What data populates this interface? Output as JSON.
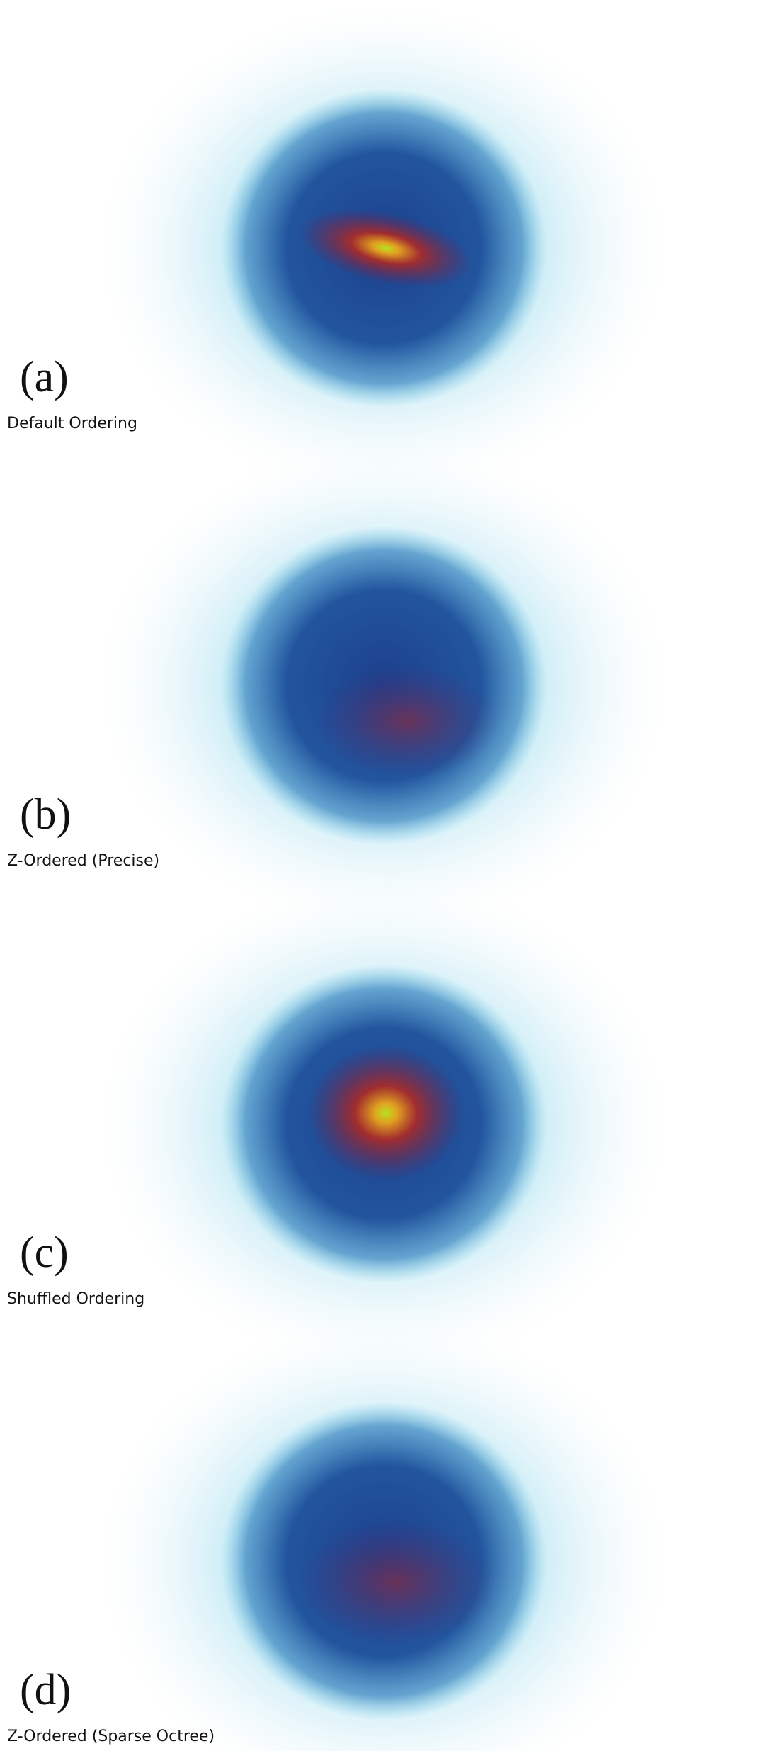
{
  "panels": [
    {
      "letter": "(a)",
      "caption": "Default Ordering"
    },
    {
      "letter": "(b)",
      "caption": "Z-Ordered (Precise)"
    },
    {
      "letter": "(c)",
      "caption": "Shuffled Ordering"
    },
    {
      "letter": "(d)",
      "caption": "Z-Ordered (Sparse Octree)"
    }
  ]
}
